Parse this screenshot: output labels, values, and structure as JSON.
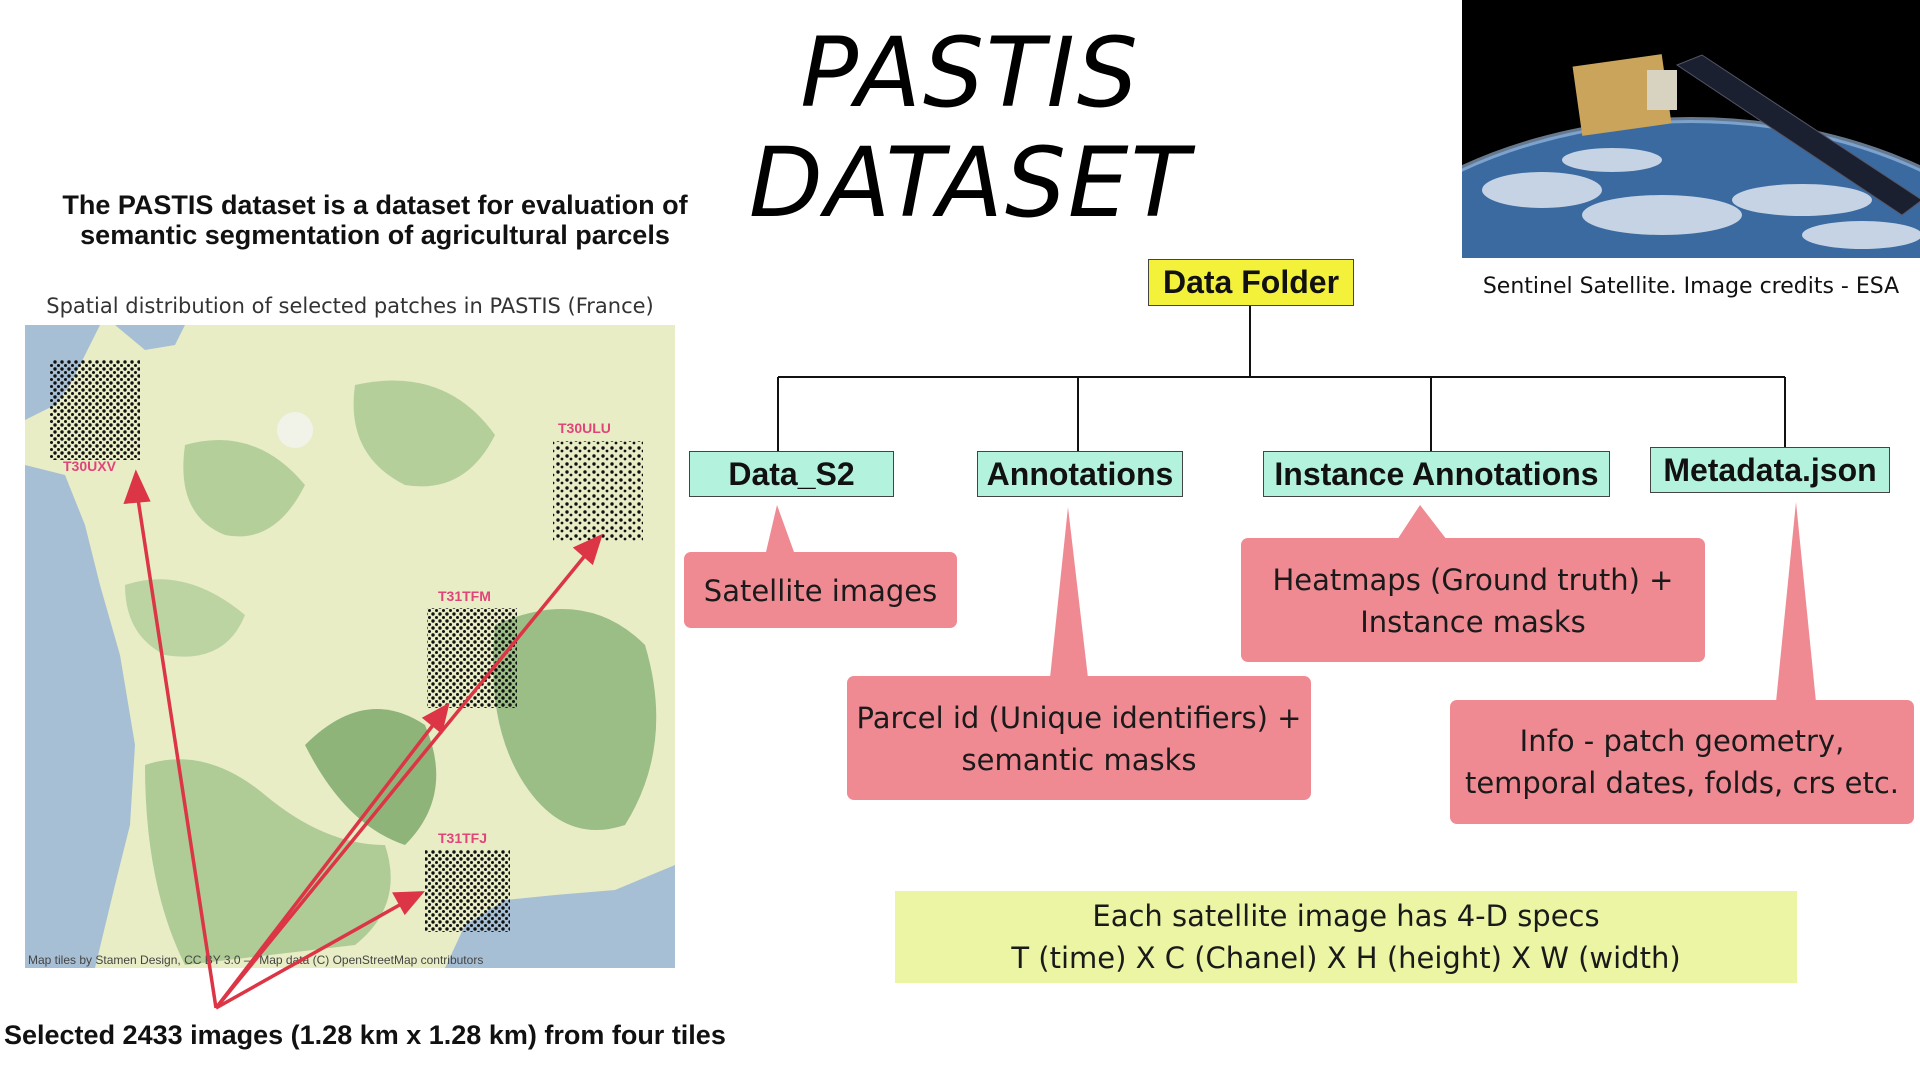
{
  "title": "PASTIS DATASET",
  "description": {
    "line1": "The PASTIS dataset is a dataset for evaluation of",
    "line2": "semantic segmentation of agricultural parcels"
  },
  "map": {
    "caption": "Spatial distribution of selected patches in PASTIS (France)",
    "tiles": [
      "T30UXV",
      "T30ULU",
      "T31TFM",
      "T31TFJ"
    ],
    "attribution": "Map tiles by Stamen Design, CC BY 3.0 — Map data (C) OpenStreetMap contributors"
  },
  "bottom_note": "Selected 2433 images (1.28 km x 1.28 km) from four tiles",
  "satellite": {
    "credit": "Sentinel Satellite. Image credits - ESA"
  },
  "tree": {
    "root": "Data Folder",
    "children": [
      "Data_S2",
      "Annotations",
      "Instance Annotations",
      "Metadata.json"
    ]
  },
  "callouts": {
    "data_s2": "Satellite images",
    "instance": {
      "line1": "Heatmaps (Ground truth) +",
      "line2": "Instance masks"
    },
    "annotations": {
      "line1": "Parcel id (Unique identifiers) +",
      "line2": "semantic masks"
    },
    "metadata": {
      "line1": "Info - patch geometry,",
      "line2": "temporal dates, folds, crs etc."
    }
  },
  "spec": {
    "line1": "Each satellite image has 4-D specs",
    "line2": "T (time) X C (Chanel) X H (height) X W (width)"
  },
  "colors": {
    "root_box": "#f4f13b",
    "child_box": "#b3f2dc",
    "callout": "#ef8a93",
    "spec_box": "#ebf5a3",
    "arrow": "#dc3545",
    "tile_label": "#e0457a"
  }
}
